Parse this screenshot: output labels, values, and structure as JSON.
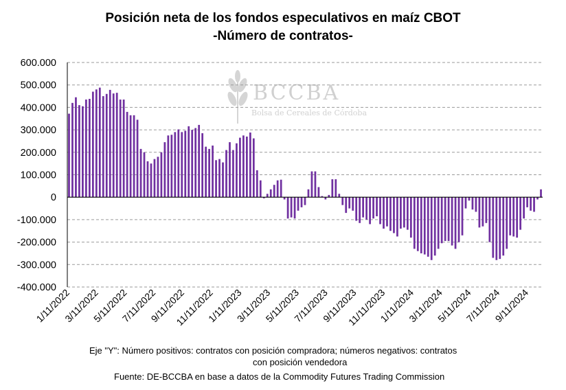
{
  "chart_data": {
    "type": "bar",
    "title": [
      "Posición neta de los fondos especulativos en maíz CBOT",
      "-Número de contratos-"
    ],
    "ylim": [
      -400000,
      600000
    ],
    "y_ticks": [
      600000,
      500000,
      400000,
      300000,
      200000,
      100000,
      0,
      -100000,
      -200000,
      -300000,
      -400000
    ],
    "y_tick_labels": [
      "600.000",
      "500.000",
      "400.000",
      "300.000",
      "200.000",
      "100.000",
      "0",
      "-100.000",
      "-200.000",
      "-300.000",
      "-400.000"
    ],
    "x_tick_labels": [
      "1/11/2022",
      "3/11/2022",
      "5/11/2022",
      "7/11/2022",
      "9/11/2022",
      "11/11/2022",
      "1/11/2023",
      "3/11/2023",
      "5/11/2023",
      "7/11/2023",
      "9/11/2023",
      "11/11/2023",
      "1/11/2024",
      "3/11/2024",
      "5/11/2024",
      "7/11/2024",
      "9/11/2024"
    ],
    "grid": true,
    "bar_color": "#7030A0",
    "series": [
      {
        "name": "Posición neta",
        "values": [
          372000,
          420000,
          445000,
          410000,
          405000,
          435000,
          438000,
          470000,
          480000,
          488000,
          450000,
          460000,
          478000,
          462000,
          465000,
          435000,
          435000,
          380000,
          365000,
          365000,
          345000,
          215000,
          200000,
          160000,
          150000,
          170000,
          180000,
          200000,
          245000,
          275000,
          278000,
          290000,
          302000,
          290000,
          296000,
          316000,
          300000,
          308000,
          322000,
          285000,
          225000,
          215000,
          230000,
          165000,
          170000,
          155000,
          210000,
          245000,
          210000,
          240000,
          265000,
          275000,
          270000,
          288000,
          262000,
          120000,
          75000,
          -5000,
          15000,
          35000,
          55000,
          75000,
          78000,
          -10000,
          -95000,
          -90000,
          -95000,
          -60000,
          -45000,
          -35000,
          35000,
          115000,
          115000,
          45000,
          5000,
          -10000,
          10000,
          80000,
          80000,
          15000,
          -35000,
          -70000,
          -50000,
          -60000,
          -105000,
          -115000,
          -90000,
          -100000,
          -120000,
          -95000,
          -85000,
          -120000,
          -140000,
          -130000,
          -150000,
          -160000,
          -175000,
          -140000,
          -135000,
          -145000,
          -180000,
          -230000,
          -240000,
          -250000,
          -255000,
          -265000,
          -280000,
          -260000,
          -230000,
          -205000,
          -195000,
          -195000,
          -215000,
          -230000,
          -200000,
          -170000,
          -50000,
          -15000,
          -55000,
          -65000,
          -135000,
          -130000,
          -115000,
          -200000,
          -270000,
          -280000,
          -275000,
          -260000,
          -230000,
          -170000,
          -175000,
          -180000,
          -145000,
          -95000,
          -45000,
          -60000,
          -65000,
          -10000,
          35000
        ]
      }
    ]
  },
  "watermark": {
    "name": "BCCBA",
    "subtitle": "Bolsa de Cereales de Córdoba"
  },
  "footer": {
    "note_line1": "Eje \"Y\": Número positivos: contratos con posición compradora; números negativos: contratos",
    "note_line2": "con posición vendedora",
    "source": "Fuente: DE-BCCBA en base a datos de la Commodity Futures Trading Commission"
  }
}
